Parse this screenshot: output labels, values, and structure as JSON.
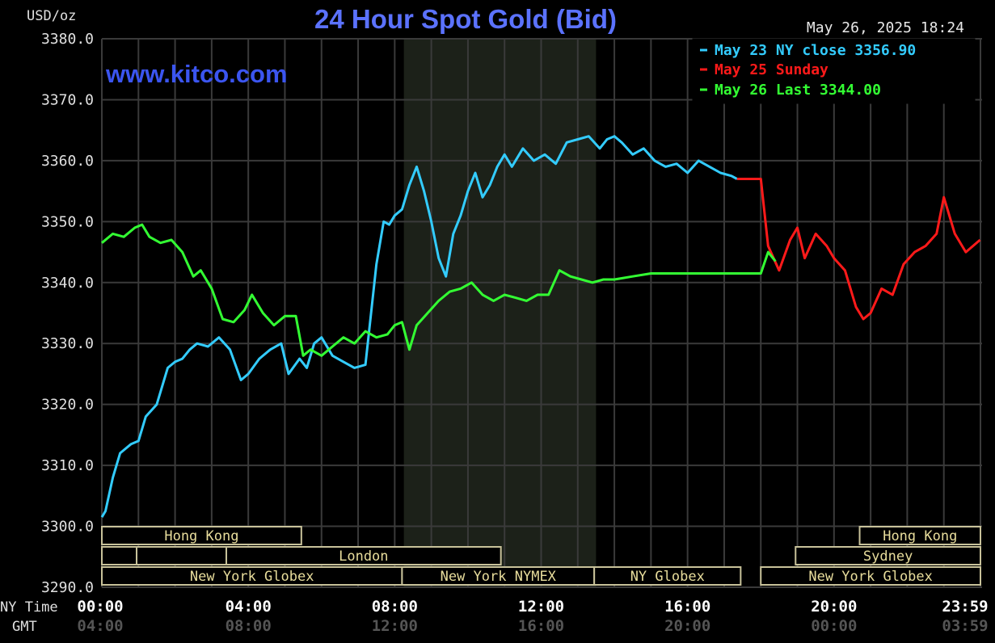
{
  "chart_data": {
    "type": "line",
    "title": "24 Hour Spot Gold (Bid)",
    "unit_label": "USD/oz",
    "timestamp": "May 26, 2025 18:24",
    "watermark": "www.kitco.com",
    "ylim": [
      3290.0,
      3380.0
    ],
    "y_ticks": [
      "3380.0",
      "3370.0",
      "3360.0",
      "3350.0",
      "3340.0",
      "3330.0",
      "3320.0",
      "3310.0",
      "3300.0",
      "3290.0"
    ],
    "x_axis": {
      "ny_label": "NY Time",
      "gmt_label": "GMT",
      "ny_ticks": [
        "00:00",
        "04:00",
        "08:00",
        "12:00",
        "16:00",
        "20:00",
        "23:59"
      ],
      "gmt_ticks": [
        "04:00",
        "08:00",
        "12:00",
        "16:00",
        "20:00",
        "00:00",
        "03:59"
      ]
    },
    "grid": true,
    "legend": {
      "placement": "top-right",
      "entries": [
        {
          "text": "May 23 NY close 3356.90",
          "color": "#33ccff"
        },
        {
          "text": "May 25 Sunday",
          "color": "#ff1a1a"
        },
        {
          "text": "May 26 Last 3344.00",
          "color": "#33ff33"
        }
      ]
    },
    "sessions": [
      "Hong Kong",
      "London",
      "New York Globex",
      "New York NYMEX",
      "NY Globex",
      "Hong Kong",
      "Sydney",
      "New York Globex"
    ],
    "series": [
      {
        "name": "May 23 NY close 3356.90",
        "color": "#33ccff",
        "hours": [
          0,
          0.1,
          0.3,
          0.5,
          0.8,
          1.0,
          1.2,
          1.5,
          1.8,
          2.0,
          2.2,
          2.4,
          2.6,
          2.9,
          3.2,
          3.5,
          3.8,
          4.0,
          4.3,
          4.6,
          4.9,
          5.1,
          5.4,
          5.6,
          5.8,
          6.0,
          6.3,
          6.6,
          6.9,
          7.2,
          7.5,
          7.7,
          7.85,
          8.0,
          8.2,
          8.4,
          8.6,
          8.8,
          9.0,
          9.2,
          9.4,
          9.6,
          9.8,
          10.0,
          10.2,
          10.4,
          10.6,
          10.8,
          11.0,
          11.2,
          11.5,
          11.8,
          12.1,
          12.4,
          12.7,
          13.0,
          13.3,
          13.6,
          13.8,
          14.0,
          14.2,
          14.5,
          14.8,
          15.1,
          15.4,
          15.7,
          16.0,
          16.3,
          16.6,
          16.9,
          17.2,
          17.35
        ],
        "values": [
          3301.5,
          3302.5,
          3308.0,
          3312.0,
          3313.5,
          3314.0,
          3318.0,
          3320.0,
          3326.0,
          3327.0,
          3327.5,
          3329.0,
          3330.0,
          3329.5,
          3331.0,
          3329.0,
          3324.0,
          3325.0,
          3327.5,
          3329.0,
          3330.0,
          3325.0,
          3327.5,
          3326.0,
          3330.0,
          3331.0,
          3328.0,
          3327.0,
          3326.0,
          3326.5,
          3343.0,
          3350.0,
          3349.5,
          3351.0,
          3352.0,
          3356.0,
          3359.0,
          3355.0,
          3350.0,
          3344.0,
          3341.0,
          3348.0,
          3351.0,
          3355.0,
          3358.0,
          3354.0,
          3356.0,
          3359.0,
          3361.0,
          3359.0,
          3362.0,
          3360.0,
          3361.0,
          3359.5,
          3363.0,
          3363.5,
          3364.0,
          3362.0,
          3363.5,
          3364.0,
          3363.0,
          3361.0,
          3362.0,
          3360.0,
          3359.0,
          3359.5,
          3358.0,
          3360.0,
          3359.0,
          3358.0,
          3357.5,
          3357.0
        ]
      },
      {
        "name": "May 25 Sunday",
        "color": "#ff1a1a",
        "hours": [
          17.35,
          18.0,
          18.2,
          18.5,
          18.8,
          19.0,
          19.2,
          19.5,
          19.8,
          20.0,
          20.3,
          20.6,
          20.8,
          21.0,
          21.3,
          21.6,
          21.9,
          22.2,
          22.5,
          22.8,
          23.0,
          23.3,
          23.6,
          23.99
        ],
        "values": [
          3357.0,
          3357.0,
          3346.0,
          3342.0,
          3347.0,
          3349.0,
          3344.0,
          3348.0,
          3346.0,
          3344.0,
          3342.0,
          3336.0,
          3334.0,
          3335.0,
          3339.0,
          3338.0,
          3343.0,
          3345.0,
          3346.0,
          3348.0,
          3354.0,
          3348.0,
          3345.0,
          3347.0
        ]
      },
      {
        "name": "May 26 Last 3344.00",
        "color": "#33ff33",
        "hours": [
          0,
          0.3,
          0.6,
          0.9,
          1.1,
          1.3,
          1.6,
          1.9,
          2.2,
          2.5,
          2.7,
          3.0,
          3.3,
          3.6,
          3.9,
          4.1,
          4.4,
          4.7,
          5.0,
          5.3,
          5.5,
          5.7,
          6.0,
          6.3,
          6.6,
          6.9,
          7.2,
          7.5,
          7.8,
          8.0,
          8.2,
          8.4,
          8.6,
          8.9,
          9.2,
          9.5,
          9.8,
          10.1,
          10.4,
          10.7,
          11.0,
          11.3,
          11.6,
          11.9,
          12.2,
          12.5,
          12.8,
          13.1,
          13.4,
          13.7,
          14.0,
          14.5,
          15.0,
          15.5,
          16.0,
          17.0,
          18.0,
          18.2,
          18.4
        ],
        "values": [
          3346.5,
          3348.0,
          3347.5,
          3349.0,
          3349.5,
          3347.5,
          3346.5,
          3347.0,
          3345.0,
          3341.0,
          3342.0,
          3339.0,
          3334.0,
          3333.5,
          3335.5,
          3338.0,
          3335.0,
          3333.0,
          3334.5,
          3334.5,
          3328.0,
          3329.0,
          3328.0,
          3329.5,
          3331.0,
          3330.0,
          3332.0,
          3331.0,
          3331.5,
          3333.0,
          3333.5,
          3329.0,
          3333.0,
          3335.0,
          3337.0,
          3338.5,
          3339.0,
          3340.0,
          3338.0,
          3337.0,
          3338.0,
          3337.5,
          3337.0,
          3338.0,
          3338.0,
          3342.0,
          3341.0,
          3340.5,
          3340.0,
          3340.5,
          3340.5,
          3341.0,
          3341.5,
          3341.5,
          3341.5,
          3341.5,
          3341.5,
          3345.0,
          3343.5
        ]
      }
    ]
  }
}
